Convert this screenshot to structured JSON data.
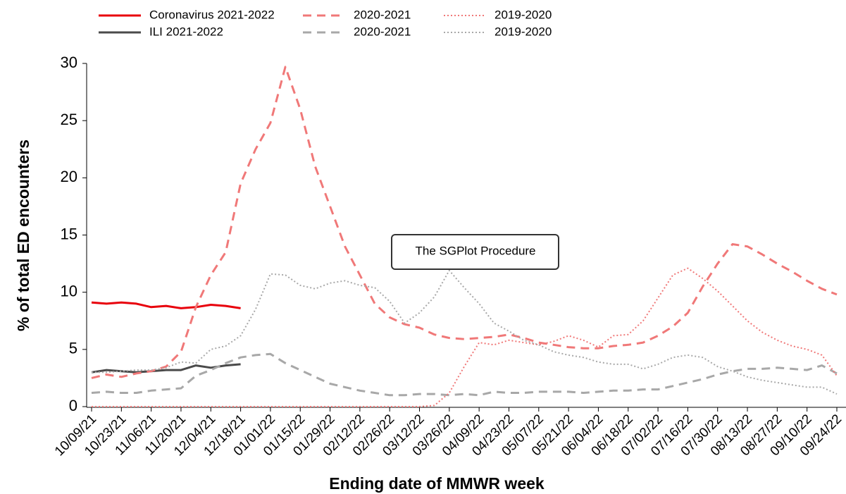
{
  "chart_data": {
    "type": "line",
    "x_label": "Ending date of MMWR week",
    "y_label": "% of total ED encounters",
    "annotation": "The SGPlot Procedure",
    "categories": [
      "10/09/21",
      null,
      "10/23/21",
      null,
      "11/06/21",
      null,
      "11/20/21",
      null,
      "12/04/21",
      null,
      "12/18/21",
      null,
      "01/01/22",
      null,
      "01/15/22",
      null,
      "01/29/22",
      null,
      "02/12/22",
      null,
      "02/26/22",
      null,
      "03/12/22",
      null,
      "03/26/22",
      null,
      "04/09/22",
      null,
      "04/23/22",
      null,
      "05/07/22",
      null,
      "05/21/22",
      null,
      "06/04/22",
      null,
      "06/18/22",
      null,
      "07/02/22",
      null,
      "07/16/22",
      null,
      "07/30/22",
      null,
      "08/13/22",
      null,
      "08/27/22",
      null,
      "09/10/22",
      null,
      "09/24/22"
    ],
    "ylim": [
      0,
      30
    ],
    "yticks": [
      0,
      5,
      10,
      15,
      20,
      25,
      30
    ],
    "series": [
      {
        "name": "Coronavirus 2021-2022",
        "color": "#e8000b",
        "style": "solid",
        "values": [
          9.1,
          9.0,
          9.1,
          9.0,
          8.7,
          8.8,
          8.6,
          8.7,
          8.9,
          8.8,
          8.6,
          null,
          null,
          null,
          null,
          null,
          null,
          null,
          null,
          null,
          null,
          null,
          null,
          null,
          null,
          null,
          null,
          null,
          null,
          null,
          null,
          null,
          null,
          null,
          null,
          null,
          null,
          null,
          null,
          null,
          null,
          null,
          null,
          null,
          null,
          null,
          null,
          null,
          null,
          null,
          null
        ]
      },
      {
        "name": "ILI 2021-2022",
        "color": "#4a4a4a",
        "style": "solid",
        "values": [
          3.0,
          3.2,
          3.1,
          3.0,
          3.1,
          3.2,
          3.2,
          3.6,
          3.4,
          3.6,
          3.7,
          null,
          null,
          null,
          null,
          null,
          null,
          null,
          null,
          null,
          null,
          null,
          null,
          null,
          null,
          null,
          null,
          null,
          null,
          null,
          null,
          null,
          null,
          null,
          null,
          null,
          null,
          null,
          null,
          null,
          null,
          null,
          null,
          null,
          null,
          null,
          null,
          null,
          null,
          null,
          null
        ]
      },
      {
        "name": "2020-2021",
        "color": "#f07878",
        "style": "dashed",
        "values": [
          2.5,
          2.8,
          2.6,
          2.9,
          3.1,
          3.5,
          4.8,
          8.7,
          11.5,
          13.5,
          19.5,
          22.5,
          24.8,
          29.7,
          26.0,
          21.0,
          17.5,
          14.0,
          11.5,
          9.0,
          7.8,
          7.2,
          6.9,
          6.3,
          6.0,
          5.9,
          6.0,
          6.1,
          6.3,
          6.0,
          5.6,
          5.4,
          5.2,
          5.1,
          5.1,
          5.3,
          5.4,
          5.6,
          6.2,
          7.0,
          8.2,
          10.5,
          12.5,
          14.2,
          14.0,
          13.3,
          12.5,
          11.8,
          11.0,
          10.3,
          9.8
        ]
      },
      {
        "name": "2020-2021",
        "color": "#a8a8a8",
        "style": "dashed",
        "values": [
          1.2,
          1.3,
          1.2,
          1.2,
          1.4,
          1.5,
          1.6,
          2.7,
          3.2,
          3.8,
          4.3,
          4.5,
          4.6,
          3.8,
          3.2,
          2.6,
          2.0,
          1.7,
          1.4,
          1.2,
          1.0,
          1.0,
          1.1,
          1.1,
          1.0,
          1.1,
          1.0,
          1.3,
          1.2,
          1.2,
          1.3,
          1.3,
          1.3,
          1.2,
          1.3,
          1.4,
          1.4,
          1.5,
          1.5,
          1.8,
          2.1,
          2.4,
          2.8,
          3.1,
          3.3,
          3.3,
          3.4,
          3.3,
          3.2,
          3.6,
          2.9
        ]
      },
      {
        "name": "2019-2020",
        "color": "#f07878",
        "style": "dotted",
        "values": [
          0.0,
          0.0,
          0.0,
          0.0,
          0.0,
          0.0,
          0.0,
          0.0,
          0.0,
          0.0,
          0.0,
          0.0,
          0.0,
          0.0,
          0.0,
          0.0,
          0.0,
          0.0,
          0.0,
          0.0,
          0.0,
          0.0,
          0.0,
          0.1,
          1.2,
          3.5,
          5.6,
          5.4,
          5.8,
          5.6,
          5.4,
          5.7,
          6.2,
          5.8,
          5.2,
          6.2,
          6.3,
          7.5,
          9.5,
          11.5,
          12.1,
          11.2,
          10.1,
          8.8,
          7.5,
          6.5,
          5.8,
          5.3,
          5.0,
          4.5,
          2.7
        ]
      },
      {
        "name": "2019-2020",
        "color": "#a8a8a8",
        "style": "dotted",
        "values": [
          3.0,
          3.0,
          3.1,
          3.2,
          3.2,
          3.4,
          3.9,
          3.8,
          5.0,
          5.3,
          6.2,
          8.5,
          11.6,
          11.5,
          10.6,
          10.3,
          10.8,
          11.0,
          10.6,
          10.4,
          9.2,
          7.3,
          8.2,
          9.6,
          11.9,
          10.4,
          9.0,
          7.3,
          6.6,
          5.8,
          5.4,
          4.8,
          4.5,
          4.3,
          3.9,
          3.7,
          3.7,
          3.3,
          3.7,
          4.3,
          4.5,
          4.3,
          3.5,
          3.1,
          2.6,
          2.3,
          2.1,
          1.9,
          1.7,
          1.7,
          1.1
        ]
      }
    ]
  }
}
